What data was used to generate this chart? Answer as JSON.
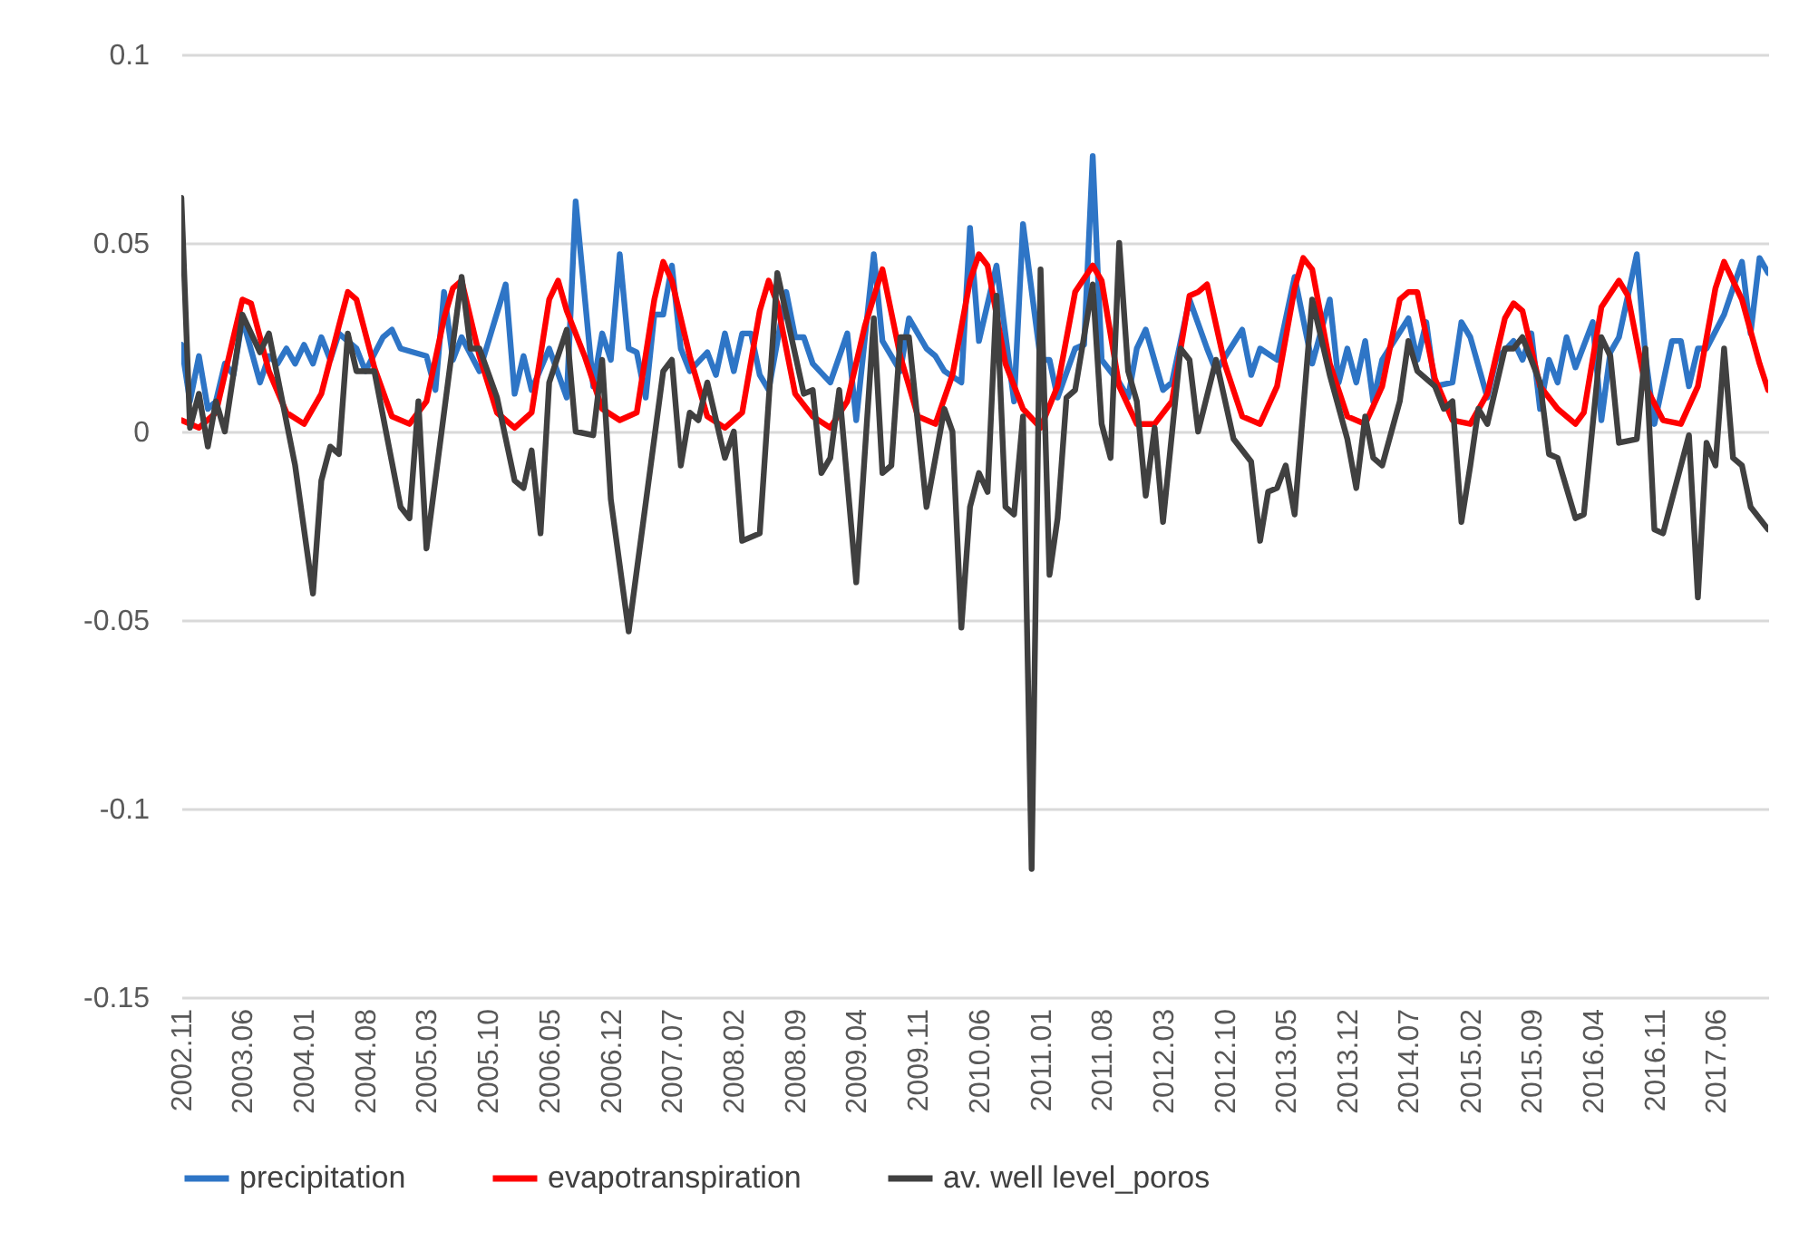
{
  "chart_data": {
    "type": "line",
    "xlim": [
      "2002-11",
      "2017-12"
    ],
    "xticks": [
      {
        "value": "2002-11",
        "label": "2002.11"
      },
      {
        "value": "2003-06",
        "label": "2003.06"
      },
      {
        "value": "2004-01",
        "label": "2004.01"
      },
      {
        "value": "2004-08",
        "label": "2004.08"
      },
      {
        "value": "2005-03",
        "label": "2005.03"
      },
      {
        "value": "2005-10",
        "label": "2005.10"
      },
      {
        "value": "2006-05",
        "label": "2006.05"
      },
      {
        "value": "2006-12",
        "label": "2006.12"
      },
      {
        "value": "2007-07",
        "label": "2007.07"
      },
      {
        "value": "2008-02",
        "label": "2008.02"
      },
      {
        "value": "2008-09",
        "label": "2008.09"
      },
      {
        "value": "2009-04",
        "label": "2009.04"
      },
      {
        "value": "2009-11",
        "label": "2009.11"
      },
      {
        "value": "2010-06",
        "label": "2010.06"
      },
      {
        "value": "2011-01",
        "label": "2011.01"
      },
      {
        "value": "2011-08",
        "label": "2011.08"
      },
      {
        "value": "2012-03",
        "label": "2012.03"
      },
      {
        "value": "2012-10",
        "label": "2012.10"
      },
      {
        "value": "2013-05",
        "label": "2013.05"
      },
      {
        "value": "2013-12",
        "label": "2013.12"
      },
      {
        "value": "2014-07",
        "label": "2014.07"
      },
      {
        "value": "2015-02",
        "label": "2015.02"
      },
      {
        "value": "2015-09",
        "label": "2015.09"
      },
      {
        "value": "2016-04",
        "label": "2016.04"
      },
      {
        "value": "2016-11",
        "label": "2016.11"
      },
      {
        "value": "2017-06",
        "label": "2017.06"
      }
    ],
    "ylim": [
      -0.15,
      0.1
    ],
    "yticks": [
      -0.15,
      -0.1,
      -0.05,
      0,
      0.05,
      0.1
    ],
    "grid": "y",
    "legend": "bottom",
    "marker": "none",
    "line_style": "solid",
    "series": [
      {
        "name": "precipitation",
        "color": "#2e75c6",
        "x": [
          "2002-11",
          "2002-12",
          "2003-01",
          "2003-02",
          "2003-03",
          "2003-04",
          "2003-05",
          "2003-06",
          "2003-08",
          "2003-09",
          "2003-10",
          "2003-11",
          "2003-12",
          "2004-01",
          "2004-02",
          "2004-03",
          "2004-04",
          "2004-05",
          "2004-07",
          "2004-08",
          "2004-10",
          "2004-11",
          "2004-12",
          "2005-03",
          "2005-04",
          "2005-05",
          "2005-06",
          "2005-07",
          "2005-09",
          "2005-12",
          "2006-01",
          "2006-02",
          "2006-03",
          "2006-05",
          "2006-07",
          "2006-08",
          "2006-10",
          "2006-11",
          "2006-12",
          "2007-01",
          "2007-02",
          "2007-03",
          "2007-04",
          "2007-05",
          "2007-06",
          "2007-07",
          "2007-08",
          "2007-09",
          "2007-11",
          "2007-12",
          "2008-01",
          "2008-02",
          "2008-03",
          "2008-04",
          "2008-05",
          "2008-06",
          "2008-08",
          "2008-09",
          "2008-10",
          "2008-11",
          "2009-01",
          "2009-03",
          "2009-04",
          "2009-06",
          "2009-07",
          "2009-09",
          "2009-10",
          "2009-12",
          "2010-01",
          "2010-02",
          "2010-04",
          "2010-05",
          "2010-06",
          "2010-08",
          "2010-10",
          "2010-11",
          "2011-01",
          "2011-02",
          "2011-03",
          "2011-05",
          "2011-06",
          "2011-07",
          "2011-08",
          "2011-10",
          "2011-11",
          "2011-12",
          "2012-01",
          "2012-03",
          "2012-04",
          "2012-06",
          "2012-08",
          "2012-09",
          "2012-12",
          "2013-01",
          "2013-02",
          "2013-04",
          "2013-06",
          "2013-08",
          "2013-10",
          "2013-11",
          "2013-12",
          "2014-01",
          "2014-02",
          "2014-03",
          "2014-04",
          "2014-07",
          "2014-08",
          "2014-09",
          "2014-10",
          "2014-12",
          "2015-01",
          "2015-02",
          "2015-04",
          "2015-05",
          "2015-07",
          "2015-08",
          "2015-09",
          "2015-10",
          "2015-11",
          "2015-12",
          "2016-01",
          "2016-02",
          "2016-04",
          "2016-05",
          "2016-06",
          "2016-07",
          "2016-09",
          "2016-10",
          "2016-11",
          "2017-01",
          "2017-02",
          "2017-03",
          "2017-04",
          "2017-05",
          "2017-07",
          "2017-09",
          "2017-10",
          "2017-11",
          "2017-12"
        ],
        "values": [
          0.023,
          0.008,
          0.02,
          0.006,
          0.008,
          0.018,
          0.015,
          0.03,
          0.013,
          0.02,
          0.018,
          0.022,
          0.018,
          0.023,
          0.018,
          0.025,
          0.019,
          0.026,
          0.022,
          0.016,
          0.025,
          0.027,
          0.022,
          0.02,
          0.011,
          0.037,
          0.019,
          0.025,
          0.016,
          0.039,
          0.01,
          0.02,
          0.011,
          0.022,
          0.009,
          0.061,
          0.012,
          0.026,
          0.019,
          0.047,
          0.022,
          0.021,
          0.009,
          0.031,
          0.031,
          0.044,
          0.022,
          0.016,
          0.021,
          0.015,
          0.026,
          0.016,
          0.026,
          0.026,
          0.015,
          0.011,
          0.037,
          0.025,
          0.025,
          0.018,
          0.013,
          0.026,
          0.003,
          0.047,
          0.024,
          0.016,
          0.03,
          0.022,
          0.02,
          0.016,
          0.013,
          0.054,
          0.024,
          0.044,
          0.008,
          0.055,
          0.019,
          0.019,
          0.009,
          0.022,
          0.023,
          0.073,
          0.019,
          0.013,
          0.009,
          0.022,
          0.027,
          0.011,
          0.013,
          0.035,
          0.022,
          0.016,
          0.027,
          0.015,
          0.022,
          0.019,
          0.041,
          0.018,
          0.035,
          0.013,
          0.022,
          0.013,
          0.024,
          0.008,
          0.019,
          0.03,
          0.019,
          0.029,
          0.012,
          0.013,
          0.029,
          0.025,
          0.009,
          0.019,
          0.024,
          0.019,
          0.026,
          0.006,
          0.019,
          0.013,
          0.025,
          0.017,
          0.029,
          0.003,
          0.021,
          0.025,
          0.047,
          0.02,
          0.002,
          0.024,
          0.024,
          0.012,
          0.022,
          0.022,
          0.031,
          0.045,
          0.026,
          0.046,
          0.042
        ]
      },
      {
        "name": "evapotranspiration",
        "color": "#ff0000",
        "x": [
          "2002-11",
          "2003-01",
          "2003-03",
          "2003-05",
          "2003-06",
          "2003-07",
          "2003-09",
          "2003-11",
          "2004-01",
          "2004-03",
          "2004-05",
          "2004-06",
          "2004-07",
          "2004-09",
          "2004-11",
          "2005-01",
          "2005-03",
          "2005-05",
          "2005-06",
          "2005-07",
          "2005-09",
          "2005-11",
          "2006-01",
          "2006-03",
          "2006-05",
          "2006-06",
          "2006-07",
          "2006-09",
          "2006-11",
          "2007-01",
          "2007-03",
          "2007-05",
          "2007-06",
          "2007-07",
          "2007-09",
          "2007-11",
          "2008-01",
          "2008-03",
          "2008-05",
          "2008-06",
          "2008-07",
          "2008-09",
          "2008-11",
          "2009-01",
          "2009-03",
          "2009-05",
          "2009-07",
          "2009-09",
          "2009-11",
          "2010-01",
          "2010-03",
          "2010-05",
          "2010-06",
          "2010-07",
          "2010-09",
          "2010-11",
          "2011-01",
          "2011-03",
          "2011-05",
          "2011-07",
          "2011-08",
          "2011-10",
          "2011-12",
          "2012-02",
          "2012-04",
          "2012-06",
          "2012-07",
          "2012-08",
          "2012-10",
          "2012-12",
          "2013-02",
          "2013-04",
          "2013-06",
          "2013-07",
          "2013-08",
          "2013-10",
          "2013-12",
          "2014-02",
          "2014-04",
          "2014-06",
          "2014-07",
          "2014-08",
          "2014-10",
          "2014-12",
          "2015-02",
          "2015-04",
          "2015-06",
          "2015-07",
          "2015-08",
          "2015-10",
          "2015-12",
          "2016-02",
          "2016-03",
          "2016-05",
          "2016-07",
          "2016-08",
          "2016-10",
          "2016-12",
          "2017-02",
          "2017-04",
          "2017-06",
          "2017-07",
          "2017-09",
          "2017-11",
          "2017-12"
        ],
        "values": [
          0.003,
          0.001,
          0.005,
          0.025,
          0.035,
          0.034,
          0.016,
          0.005,
          0.002,
          0.01,
          0.028,
          0.037,
          0.035,
          0.017,
          0.004,
          0.002,
          0.008,
          0.03,
          0.038,
          0.04,
          0.02,
          0.005,
          0.001,
          0.005,
          0.035,
          0.04,
          0.032,
          0.02,
          0.006,
          0.003,
          0.005,
          0.035,
          0.045,
          0.04,
          0.02,
          0.004,
          0.001,
          0.005,
          0.032,
          0.04,
          0.034,
          0.01,
          0.004,
          0.001,
          0.008,
          0.028,
          0.043,
          0.02,
          0.004,
          0.002,
          0.015,
          0.04,
          0.047,
          0.044,
          0.018,
          0.006,
          0.001,
          0.012,
          0.037,
          0.044,
          0.04,
          0.012,
          0.002,
          0.002,
          0.008,
          0.036,
          0.037,
          0.039,
          0.018,
          0.004,
          0.002,
          0.012,
          0.038,
          0.046,
          0.043,
          0.018,
          0.004,
          0.002,
          0.012,
          0.035,
          0.037,
          0.037,
          0.014,
          0.003,
          0.002,
          0.01,
          0.03,
          0.034,
          0.032,
          0.012,
          0.006,
          0.002,
          0.005,
          0.033,
          0.04,
          0.036,
          0.012,
          0.003,
          0.002,
          0.012,
          0.038,
          0.045,
          0.035,
          0.018,
          0.011
        ]
      },
      {
        "name": "av. well level_poros",
        "color": "#404040",
        "x": [
          "2002-11",
          "2002-12",
          "2003-01",
          "2003-02",
          "2003-03",
          "2003-04",
          "2003-06",
          "2003-08",
          "2003-09",
          "2003-12",
          "2004-02",
          "2004-03",
          "2004-04",
          "2004-05",
          "2004-06",
          "2004-07",
          "2004-09",
          "2004-12",
          "2005-01",
          "2005-02",
          "2005-03",
          "2005-07",
          "2005-08",
          "2005-09",
          "2005-11",
          "2006-01",
          "2006-02",
          "2006-03",
          "2006-04",
          "2006-05",
          "2006-07",
          "2006-08",
          "2006-10",
          "2006-11",
          "2006-12",
          "2007-02",
          "2007-06",
          "2007-07",
          "2007-08",
          "2007-09",
          "2007-10",
          "2007-11",
          "2008-01",
          "2008-02",
          "2008-03",
          "2008-05",
          "2008-07",
          "2008-10",
          "2008-11",
          "2008-12",
          "2009-01",
          "2009-02",
          "2009-04",
          "2009-06",
          "2009-07",
          "2009-08",
          "2009-09",
          "2009-10",
          "2009-12",
          "2010-02",
          "2010-03",
          "2010-04",
          "2010-05",
          "2010-06",
          "2010-07",
          "2010-08",
          "2010-09",
          "2010-10",
          "2010-11",
          "2010-12",
          "2011-01",
          "2011-02",
          "2011-03",
          "2011-04",
          "2011-05",
          "2011-07",
          "2011-08",
          "2011-09",
          "2011-10",
          "2011-11",
          "2011-12",
          "2012-01",
          "2012-02",
          "2012-03",
          "2012-05",
          "2012-06",
          "2012-07",
          "2012-09",
          "2012-11",
          "2013-01",
          "2013-02",
          "2013-03",
          "2013-04",
          "2013-05",
          "2013-06",
          "2013-08",
          "2013-10",
          "2013-12",
          "2014-01",
          "2014-02",
          "2014-03",
          "2014-04",
          "2014-06",
          "2014-07",
          "2014-08",
          "2014-10",
          "2014-11",
          "2014-12",
          "2015-01",
          "2015-02",
          "2015-03",
          "2015-04",
          "2015-06",
          "2015-07",
          "2015-08",
          "2015-10",
          "2015-11",
          "2015-12",
          "2016-02",
          "2016-03",
          "2016-05",
          "2016-06",
          "2016-07",
          "2016-09",
          "2016-10",
          "2016-11",
          "2016-12",
          "2017-03",
          "2017-04",
          "2017-05",
          "2017-06",
          "2017-07",
          "2017-08",
          "2017-09",
          "2017-10",
          "2017-12"
        ],
        "values": [
          0.062,
          0.001,
          0.01,
          -0.004,
          0.008,
          0,
          0.031,
          0.021,
          0.026,
          -0.009,
          -0.043,
          -0.013,
          -0.004,
          -0.006,
          0.026,
          0.016,
          0.016,
          -0.02,
          -0.023,
          0.008,
          -0.031,
          0.041,
          0.022,
          0.022,
          0.009,
          -0.013,
          -0.015,
          -0.005,
          -0.027,
          0.013,
          0.027,
          0,
          -0.001,
          0.019,
          -0.018,
          -0.053,
          0.016,
          0.019,
          -0.009,
          0.005,
          0.003,
          0.013,
          -0.007,
          0,
          -0.029,
          -0.027,
          0.042,
          0.01,
          0.011,
          -0.011,
          -0.007,
          0.011,
          -0.04,
          0.03,
          -0.011,
          -0.009,
          0.025,
          0.025,
          -0.02,
          0.006,
          0,
          -0.052,
          -0.02,
          -0.011,
          -0.016,
          0.036,
          -0.02,
          -0.022,
          0.004,
          -0.116,
          0.043,
          -0.038,
          -0.023,
          0.009,
          0.011,
          0.039,
          0.002,
          -0.007,
          0.05,
          0.016,
          0.008,
          -0.017,
          0.001,
          -0.024,
          0.022,
          0.019,
          0,
          0.019,
          -0.002,
          -0.008,
          -0.029,
          -0.016,
          -0.015,
          -0.009,
          -0.022,
          0.035,
          0.015,
          -0.002,
          -0.015,
          0.004,
          -0.007,
          -0.009,
          0.008,
          0.024,
          0.016,
          0.012,
          0.006,
          0.008,
          -0.024,
          -0.009,
          0.006,
          0.002,
          0.022,
          0.022,
          0.025,
          0.013,
          -0.006,
          -0.007,
          -0.023,
          -0.022,
          0.025,
          0.02,
          -0.003,
          -0.002,
          0.022,
          -0.026,
          -0.027,
          -0.001,
          -0.044,
          -0.003,
          -0.009,
          0.022,
          -0.007,
          -0.009,
          -0.02,
          -0.026
        ]
      }
    ]
  }
}
